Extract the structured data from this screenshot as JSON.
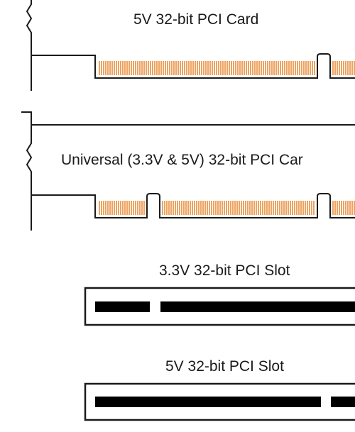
{
  "labels": {
    "card_5v": "5V 32-bit PCI Card",
    "card_universal": "Universal (3.3V & 5V) 32-bit PCI Car",
    "slot_3v3": "3.3V 32-bit PCI Slot",
    "slot_5v": "5V 32-bit PCI Slot"
  },
  "colors": {
    "background": "#ffffff",
    "outline": "#1a1a1a",
    "contact_pins": "#e8842a",
    "slot_key": "#000000"
  }
}
